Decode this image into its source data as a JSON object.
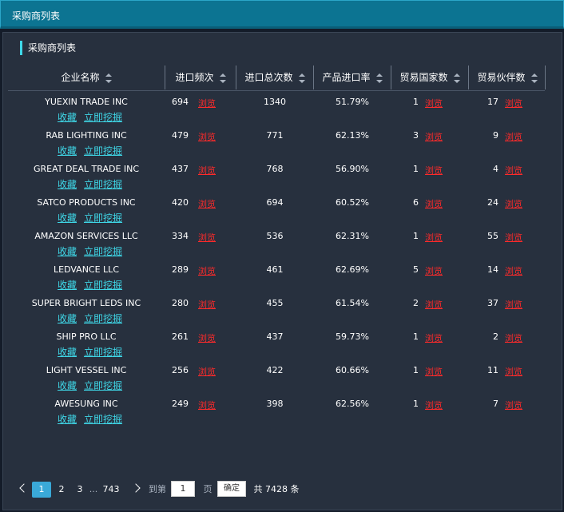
{
  "window": {
    "title": "采购商列表"
  },
  "panel": {
    "subtitle": "采购商列表"
  },
  "table": {
    "headers": {
      "company": "企业名称",
      "import_freq": "进口频次",
      "import_total": "进口总次数",
      "product_rate": "产品进口率",
      "trade_countries": "贸易国家数",
      "trade_partners": "贸易伙伴数"
    },
    "actions": {
      "favorite": "收藏",
      "mine": "立即挖掘",
      "browse": "浏览"
    },
    "rows": [
      {
        "company": "YUEXIN TRADE INC",
        "freq": "694",
        "total": "1340",
        "rate": "51.79%",
        "countries": "1",
        "partners": "17"
      },
      {
        "company": "RAB LIGHTING INC",
        "freq": "479",
        "total": "771",
        "rate": "62.13%",
        "countries": "3",
        "partners": "9"
      },
      {
        "company": "GREAT DEAL TRADE INC",
        "freq": "437",
        "total": "768",
        "rate": "56.90%",
        "countries": "1",
        "partners": "4"
      },
      {
        "company": "SATCO PRODUCTS INC",
        "freq": "420",
        "total": "694",
        "rate": "60.52%",
        "countries": "6",
        "partners": "24"
      },
      {
        "company": "AMAZON SERVICES LLC",
        "freq": "334",
        "total": "536",
        "rate": "62.31%",
        "countries": "1",
        "partners": "55"
      },
      {
        "company": "LEDVANCE LLC",
        "freq": "289",
        "total": "461",
        "rate": "62.69%",
        "countries": "5",
        "partners": "14"
      },
      {
        "company": "SUPER BRIGHT LEDS INC",
        "freq": "280",
        "total": "455",
        "rate": "61.54%",
        "countries": "2",
        "partners": "37"
      },
      {
        "company": "SHIP PRO LLC",
        "freq": "261",
        "total": "437",
        "rate": "59.73%",
        "countries": "1",
        "partners": "2"
      },
      {
        "company": "LIGHT VESSEL INC",
        "freq": "256",
        "total": "422",
        "rate": "60.66%",
        "countries": "1",
        "partners": "11"
      },
      {
        "company": "AWESUNG INC",
        "freq": "249",
        "total": "398",
        "rate": "62.56%",
        "countries": "1",
        "partners": "7"
      }
    ]
  },
  "pagination": {
    "pages": [
      "1",
      "2",
      "3"
    ],
    "ellipsis": "...",
    "last_page": "743",
    "goto_label": "到第",
    "goto_value": "1",
    "page_unit": "页",
    "confirm": "确定",
    "total": "共 7428 条"
  },
  "colors": {
    "accent": "#3fd8e8",
    "link_red": "#ff2a2a",
    "titlebar": "#0c7492"
  }
}
